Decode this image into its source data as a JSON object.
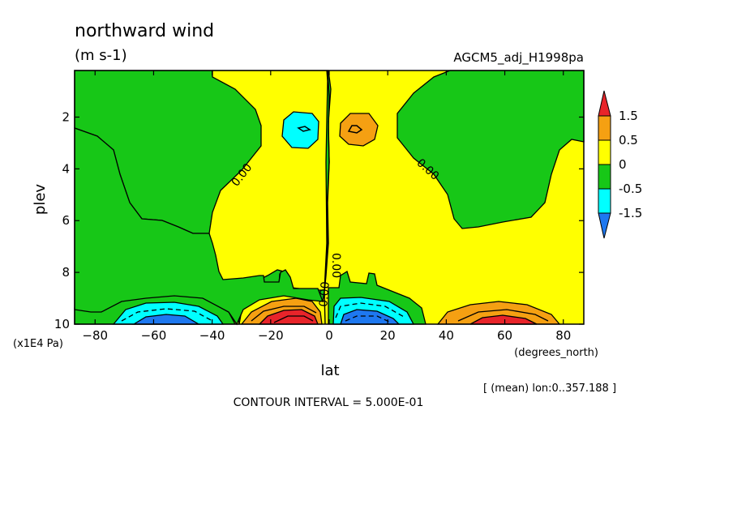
{
  "chart_data": {
    "type": "contour",
    "title": "northward wind",
    "units": "(m s-1)",
    "dataset": "AGCM5_adj_H1998pa",
    "xlabel": "lat",
    "xunits": "(degrees_north)",
    "ylabel": "plev",
    "yunits": "(x1E4 Pa)",
    "xlim": [
      -87,
      87
    ],
    "ylim": [
      10,
      0.2
    ],
    "xticks": [
      -80,
      -60,
      -40,
      -20,
      0,
      20,
      40,
      60,
      80
    ],
    "yticks": [
      2,
      4,
      6,
      8,
      10
    ],
    "contour_interval_label": "CONTOUR INTERVAL = 5.000E-01",
    "mean_note": "[ (mean) lon:0..357.188 ]",
    "contour_labels": [
      "0.00",
      "0.00",
      "0.00",
      "0.00"
    ],
    "legend": {
      "levels": [
        "1.5",
        "0.5",
        "0",
        "-0.5",
        "-1.5"
      ],
      "colors": [
        "#e8242a",
        "#f5a012",
        "#ffff00",
        "#17c717",
        "#00ffff",
        "#1e78f0"
      ]
    },
    "features": [
      {
        "lat": -58,
        "plev": 9.9,
        "sign": "negative",
        "peak": -2.0
      },
      {
        "lat": -12,
        "plev": 9.8,
        "sign": "positive",
        "peak": 3.0
      },
      {
        "lat": 12,
        "plev": 9.8,
        "sign": "negative",
        "peak": -2.0
      },
      {
        "lat": 57,
        "plev": 9.9,
        "sign": "positive",
        "peak": 1.5
      },
      {
        "lat": -11,
        "plev": 2.5,
        "sign": "negative",
        "peak": -0.7
      },
      {
        "lat": 11,
        "plev": 2.4,
        "sign": "positive",
        "peak": 0.7
      }
    ]
  }
}
